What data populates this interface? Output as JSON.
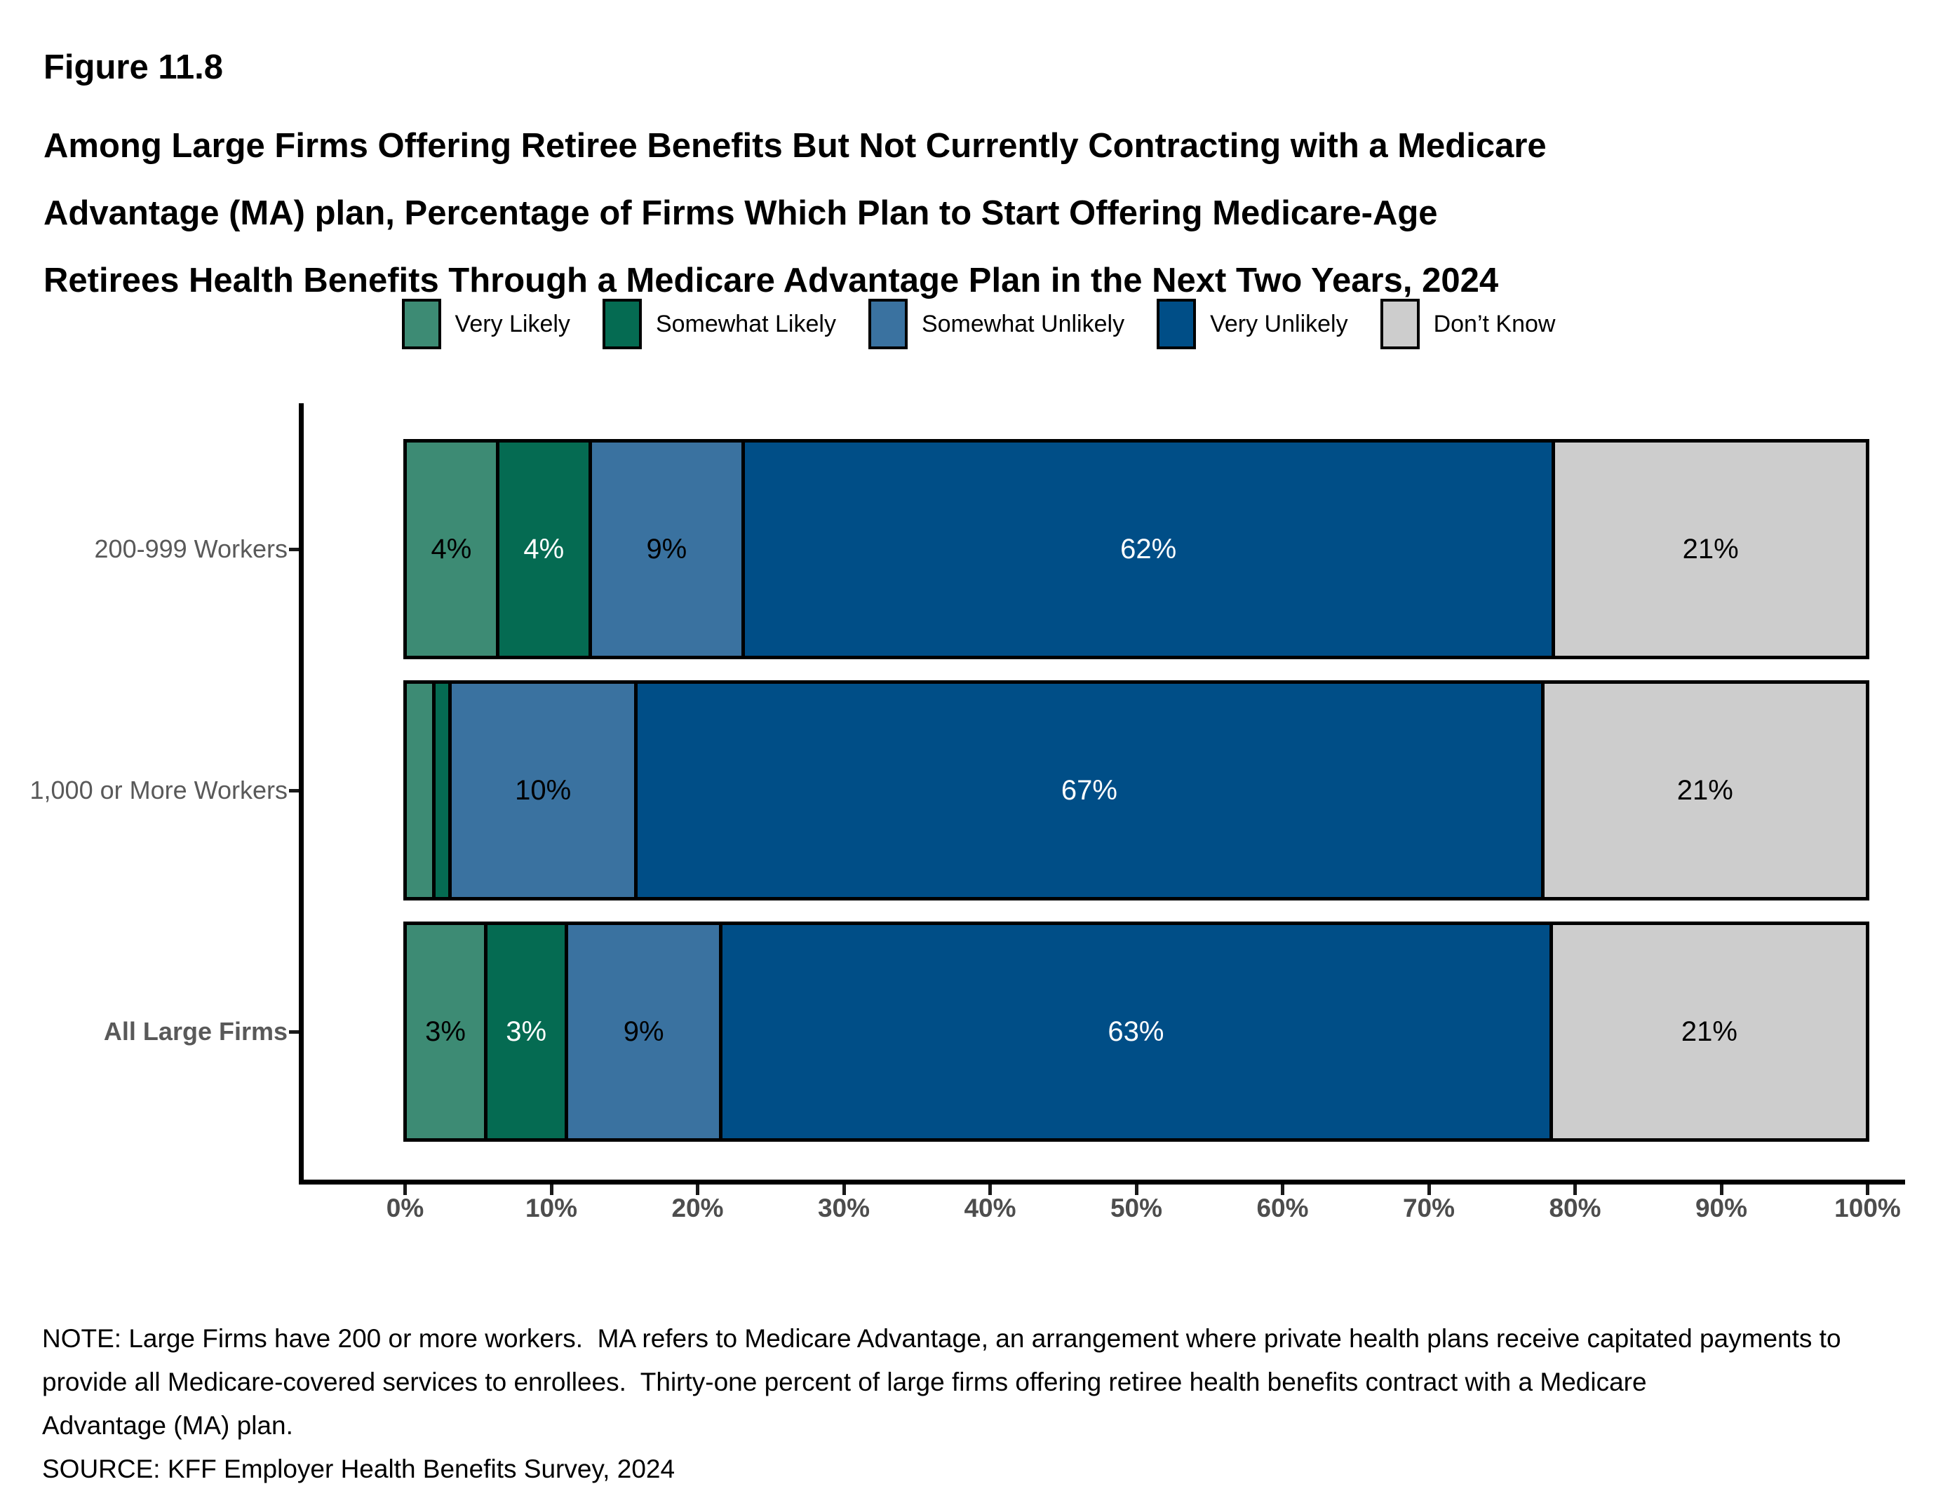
{
  "figure": {
    "label": "Figure 11.8"
  },
  "title": {
    "lines": [
      "Among Large Firms Offering Retiree Benefits But Not Currently Contracting with a Medicare",
      "Advantage (MA) plan, Percentage of Firms Which Plan to Start Offering Medicare-Age",
      "Retirees Health Benefits Through a Medicare Advantage Plan in the Next Two Years, 2024"
    ]
  },
  "notes": {
    "lines": [
      "NOTE: Large Firms have 200 or more workers.  MA refers to Medicare Advantage, an arrangement where private health plans receive capitated payments to",
      "provide all Medicare-covered services to enrollees.  Thirty-one percent of large firms offering retiree health benefits contract with a Medicare",
      "Advantage (MA) plan.",
      "SOURCE: KFF Employer Health Benefits Survey, 2024"
    ]
  },
  "chart_data": {
    "type": "bar",
    "stacked": true,
    "orientation": "horizontal",
    "legend_position": "top",
    "grid": false,
    "xlim": [
      0,
      100
    ],
    "x_ticks": [
      "0%",
      "10%",
      "20%",
      "30%",
      "40%",
      "50%",
      "60%",
      "70%",
      "80%",
      "90%",
      "100%"
    ],
    "axis_text_color": "#595959",
    "categories": [
      {
        "label": "200-999 Workers",
        "bold": false
      },
      {
        "label": "1,000 or More Workers",
        "bold": false
      },
      {
        "label": "All Large Firms",
        "bold": true
      }
    ],
    "series": [
      {
        "name": "Very Likely",
        "color": "#3d8b74",
        "text_color": "#000000",
        "values": [
          4,
          2,
          3
        ],
        "labels": [
          "4%",
          "",
          "3%"
        ]
      },
      {
        "name": "Somewhat Likely",
        "color": "#056b52",
        "text_color": "#ffffff",
        "values": [
          4,
          1,
          3
        ],
        "labels": [
          "4%",
          "",
          "3%"
        ]
      },
      {
        "name": "Somewhat Unlikely",
        "color": "#3a72a0",
        "text_color": "#000000",
        "values": [
          9,
          10,
          9
        ],
        "labels": [
          "9%",
          "10%",
          "9%"
        ]
      },
      {
        "name": "Very Unlikely",
        "color": "#004e87",
        "text_color": "#ffffff",
        "values": [
          62,
          67,
          63
        ],
        "labels": [
          "62%",
          "67%",
          "63%"
        ]
      },
      {
        "name": "Don’t Know",
        "color": "#cdcdcd",
        "text_color": "#000000",
        "values": [
          21,
          21,
          21
        ],
        "labels": [
          "21%",
          "21%",
          "21%"
        ]
      }
    ]
  }
}
